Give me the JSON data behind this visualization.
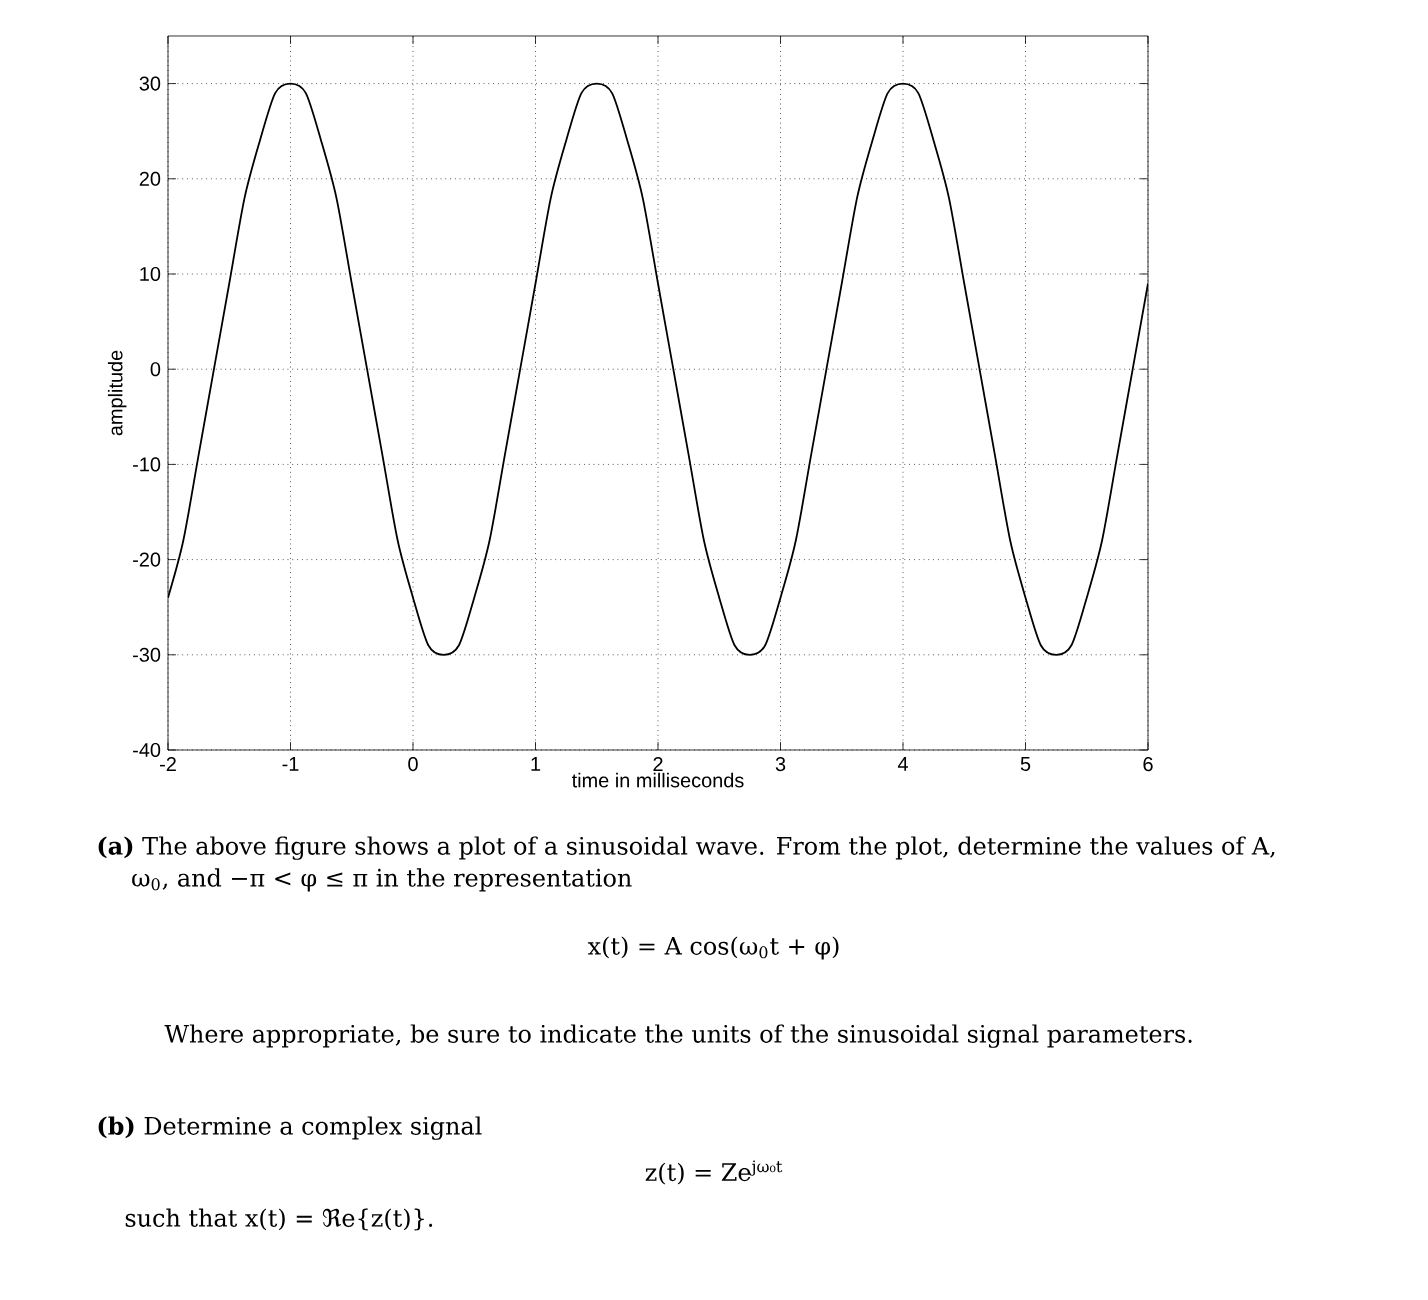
{
  "chart_data": {
    "type": "line",
    "xlabel": "time in milliseconds",
    "ylabel": "amplitude",
    "color": "#000000",
    "grid": true,
    "xlim": [
      -2,
      6
    ],
    "ylim": [
      -40,
      35
    ],
    "xticks": [
      -2,
      -1,
      0,
      1,
      2,
      3,
      4,
      5,
      6
    ],
    "yticks": [
      -40,
      -30,
      -20,
      -10,
      0,
      10,
      20,
      30
    ],
    "x": [
      -2,
      -1.875,
      -1.75,
      -1.625,
      -1.5,
      -1.375,
      -1.25,
      -1.125,
      -1,
      -0.875,
      -0.75,
      -0.625,
      -0.5,
      -0.375,
      -0.25,
      -0.125,
      0,
      0.125,
      0.25,
      0.375,
      0.5,
      0.625,
      0.75,
      0.875,
      1,
      1.125,
      1.25,
      1.375,
      1.5,
      1.625,
      1.75,
      1.875,
      2,
      2.125,
      2.25,
      2.375,
      2.5,
      2.625,
      2.75,
      2.875,
      3,
      3.125,
      3.25,
      3.375,
      3.5,
      3.625,
      3.75,
      3.875,
      4,
      4.125,
      4.25,
      4.375,
      4.5,
      4.625,
      4.75,
      4.875,
      5,
      5.125,
      5.25,
      5.375,
      5.5,
      5.625,
      5.75,
      5.875,
      6
    ],
    "values": [
      -24,
      -18,
      -9,
      0,
      9,
      18,
      24,
      29,
      30,
      29,
      24,
      18,
      9,
      0,
      -9,
      -18,
      -24,
      -29,
      -30,
      -29,
      -24,
      -18,
      -9,
      0,
      9,
      18,
      24,
      29,
      30,
      29,
      24,
      18,
      9,
      0,
      -9,
      -18,
      -24,
      -29,
      -30,
      -29,
      -24,
      -18,
      -9,
      0,
      9,
      18,
      24,
      29,
      30,
      29,
      24,
      18,
      9,
      0,
      -9,
      -18,
      -24,
      -29,
      -30,
      -29,
      -24,
      -18,
      -9,
      0,
      9
    ],
    "annotations": [
      "**(a)** The above figure shows a plot of a sinusoidal wave. From the plot, determine the values of A, ω$_{0}$, and −π < φ ≤ π in the representation",
      "x(t) = A cos(ω$_{0}$t + φ)",
      "Where appropriate, be sure to indicate the units of the sinusoidal signal parameters.",
      "**(b)** Determine a complex signal",
      "z(t) = Ze$^{jω₀t}$",
      "such that x(t) = ℜe{z(t)}."
    ]
  }
}
